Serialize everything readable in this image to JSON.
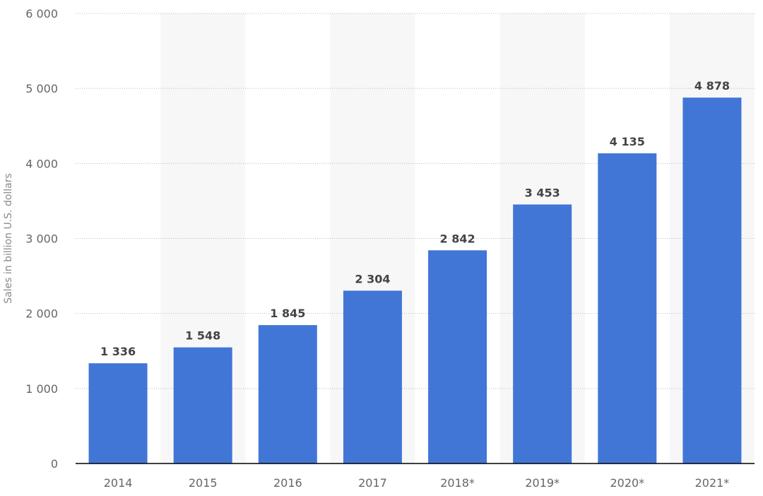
{
  "chart_data": {
    "type": "bar",
    "title": "",
    "xlabel": "",
    "ylabel": "Sales in billion U.S. dollars",
    "categories": [
      "2014",
      "2015",
      "2016",
      "2017",
      "2018*",
      "2019*",
      "2020*",
      "2021*"
    ],
    "values": [
      1336,
      1548,
      1845,
      2304,
      2842,
      3453,
      4135,
      4878
    ],
    "value_labels": [
      "1 336",
      "1 548",
      "1 845",
      "2 304",
      "2 842",
      "3 453",
      "4 135",
      "4 878"
    ],
    "ylim": [
      0,
      6000
    ],
    "yticks": [
      0,
      1000,
      2000,
      3000,
      4000,
      5000,
      6000
    ],
    "ytick_labels": [
      "0",
      "1 000",
      "2 000",
      "3 000",
      "4 000",
      "5 000",
      "6 000"
    ],
    "grid": true,
    "legend": "none",
    "colors": {
      "bar": "#4176d6",
      "band": "#f7f7f7",
      "grid": "#bbbbbb",
      "axis": "#000000"
    }
  }
}
